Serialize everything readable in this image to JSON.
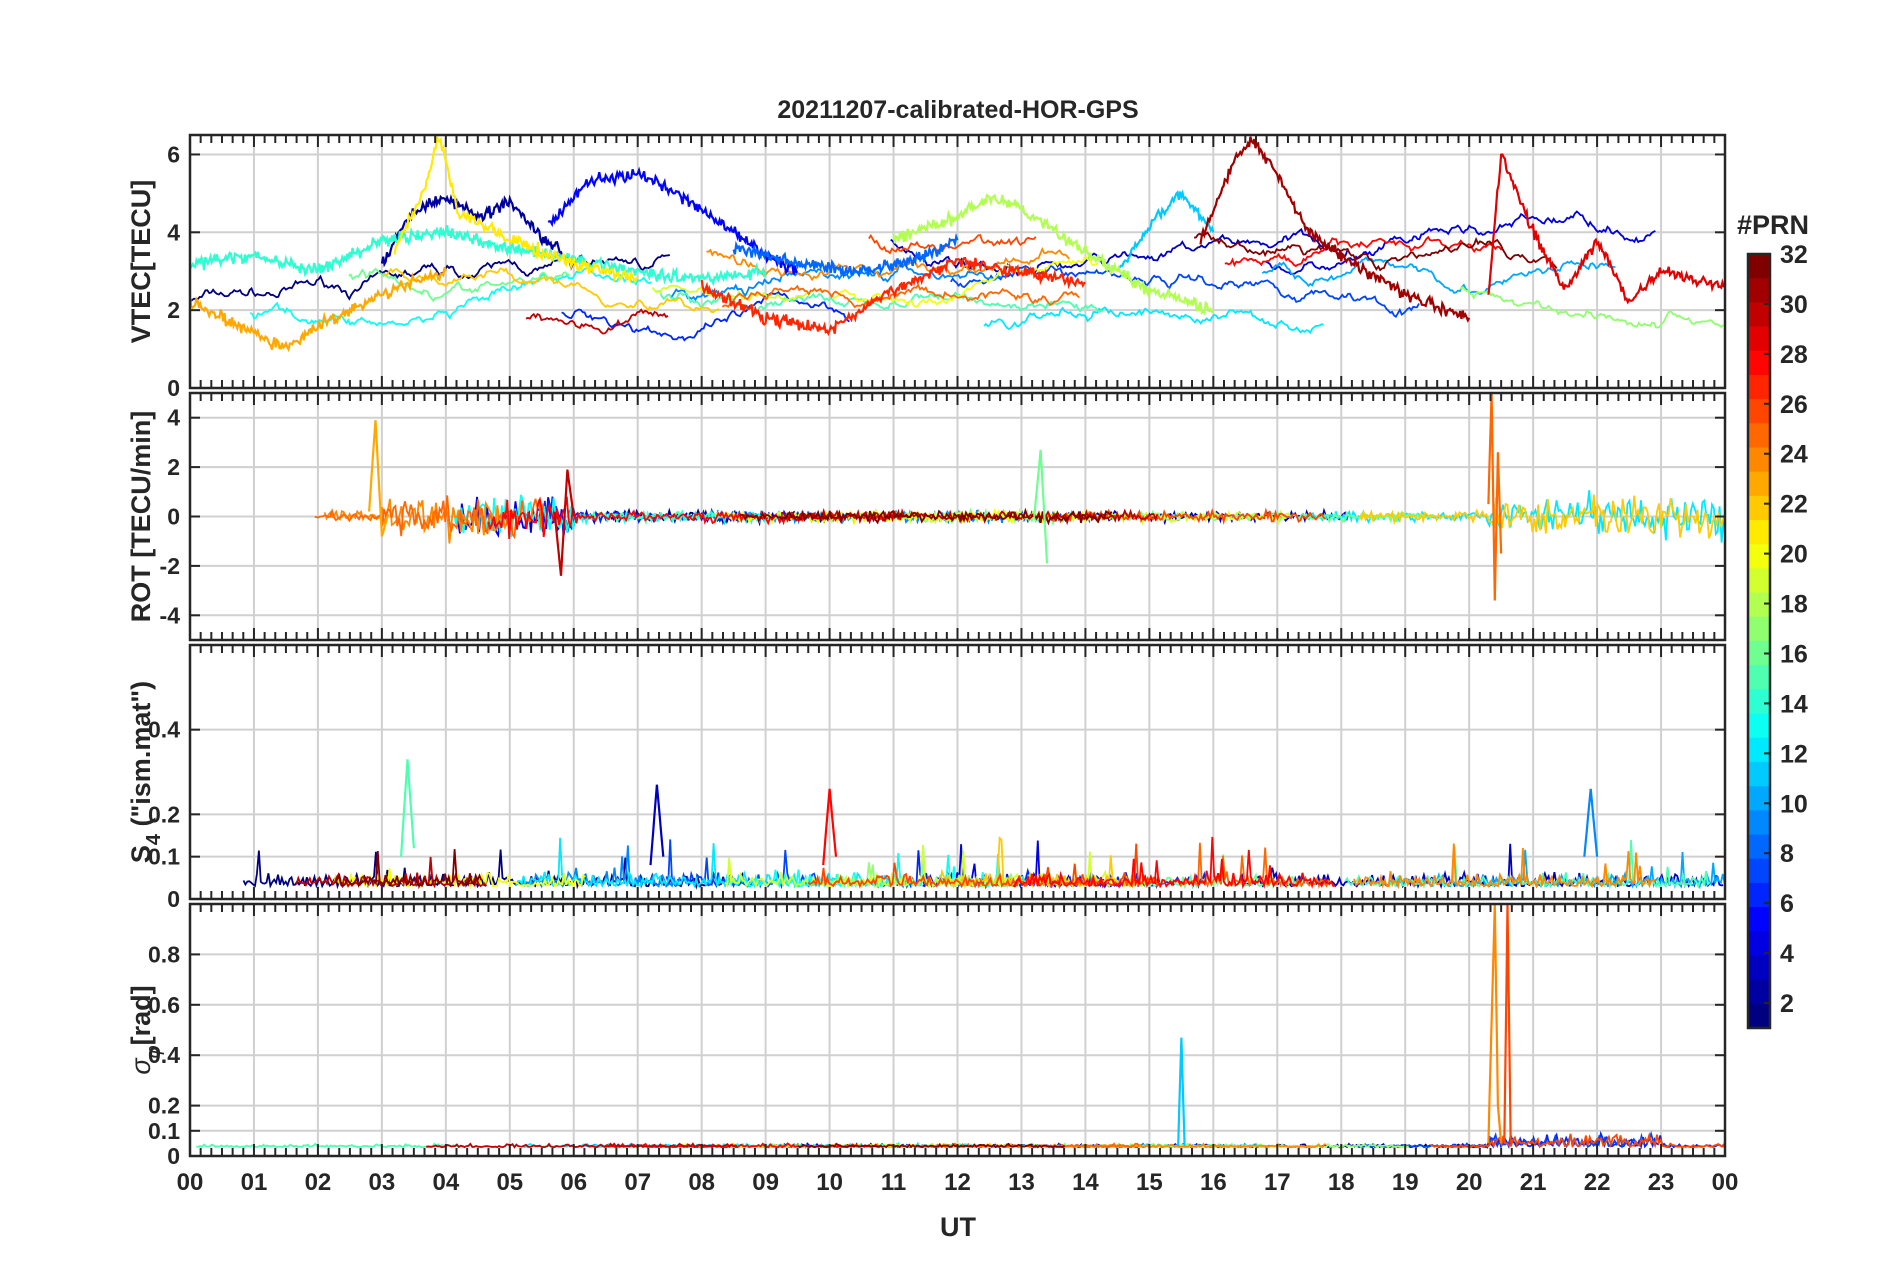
{
  "figure": {
    "title": "20211207-calibrated-HOR-GPS",
    "x_axis_label": "UT",
    "x_tick_labels": [
      "00",
      "01",
      "02",
      "03",
      "04",
      "05",
      "06",
      "07",
      "08",
      "09",
      "10",
      "11",
      "12",
      "13",
      "14",
      "15",
      "16",
      "17",
      "18",
      "19",
      "20",
      "21",
      "22",
      "23",
      "00"
    ]
  },
  "colorbar": {
    "title": "#PRN",
    "range": [
      1,
      32
    ],
    "tick_labels": [
      "2",
      "4",
      "6",
      "8",
      "10",
      "12",
      "14",
      "16",
      "18",
      "20",
      "22",
      "24",
      "26",
      "28",
      "30",
      "32"
    ],
    "colormap": "jet",
    "colors": [
      "#00008f",
      "#0000ff",
      "#0080ff",
      "#00ffff",
      "#80ff80",
      "#ffff00",
      "#ff8000",
      "#ff0000",
      "#800000"
    ]
  },
  "chart_data": [
    {
      "type": "line",
      "panel": "vtec",
      "ylabel": "VTEC[TECU]",
      "ylim": [
        0,
        6.5
      ],
      "yticks": [
        0,
        2,
        4,
        6
      ],
      "ytick_labels": [
        "0",
        "2",
        "4",
        "6"
      ],
      "xlim": [
        0,
        24
      ],
      "grid": true,
      "series_note": "one trace per GPS PRN (1–32), colored by PRN",
      "series": [
        {
          "prn": 2,
          "x": [
            3.0,
            3.5,
            4.0,
            4.5,
            5.0,
            5.5,
            6.0
          ],
          "y": [
            3.2,
            4.6,
            4.9,
            4.4,
            4.8,
            3.9,
            3.2
          ]
        },
        {
          "prn": 5,
          "x": [
            5.6,
            6.2,
            7.0,
            7.8,
            8.5,
            9.0,
            9.5
          ],
          "y": [
            4.2,
            5.3,
            5.5,
            4.8,
            4.0,
            3.4,
            3.0
          ]
        },
        {
          "prn": 8,
          "x": [
            8.5,
            9.5,
            10.5,
            11.5,
            12.0
          ],
          "y": [
            3.6,
            3.2,
            3.0,
            3.4,
            3.8
          ]
        },
        {
          "prn": 11,
          "x": [
            14.5,
            15.0,
            15.5,
            16.0
          ],
          "y": [
            3.0,
            4.2,
            5.0,
            4.0
          ]
        },
        {
          "prn": 14,
          "x": [
            0.0,
            1.0,
            2.0,
            3.0,
            4.0,
            5.0,
            6.0,
            7.0,
            8.0,
            9.0
          ],
          "y": [
            3.2,
            3.4,
            3.0,
            3.8,
            4.0,
            3.6,
            3.3,
            3.0,
            2.8,
            3.0
          ]
        },
        {
          "prn": 18,
          "x": [
            11.0,
            12.0,
            12.5,
            13.0,
            14.0,
            15.0,
            16.0
          ],
          "y": [
            3.8,
            4.4,
            4.9,
            4.6,
            3.5,
            2.5,
            2.0
          ]
        },
        {
          "prn": 21,
          "x": [
            3.2,
            3.6,
            3.9,
            4.2,
            5.0,
            6.0,
            7.0
          ],
          "y": [
            3.6,
            4.8,
            6.5,
            4.5,
            3.8,
            3.2,
            2.8
          ]
        },
        {
          "prn": 23,
          "x": [
            0.0,
            0.5,
            1.0,
            1.5,
            2.0,
            3.0,
            4.0
          ],
          "y": [
            2.2,
            1.8,
            1.4,
            1.0,
            1.6,
            2.4,
            3.0
          ]
        },
        {
          "prn": 27,
          "x": [
            8.0,
            9.0,
            10.0,
            11.0,
            12.0,
            13.0,
            14.0
          ],
          "y": [
            2.6,
            1.8,
            1.5,
            2.5,
            3.3,
            3.0,
            2.7
          ]
        },
        {
          "prn": 29,
          "x": [
            20.3,
            20.5,
            21.0,
            21.5,
            22.0,
            22.5,
            23.0,
            24.0
          ],
          "y": [
            2.5,
            6.0,
            4.0,
            2.5,
            3.8,
            2.2,
            3.0,
            2.6
          ]
        },
        {
          "prn": 31,
          "x": [
            15.8,
            16.3,
            16.6,
            17.0,
            17.5,
            18.0,
            19.0,
            20.0
          ],
          "y": [
            3.8,
            5.8,
            6.4,
            5.5,
            4.0,
            3.4,
            2.4,
            1.8
          ]
        }
      ]
    },
    {
      "type": "line",
      "panel": "rot",
      "ylabel": "ROT [TECU/min]",
      "ylim": [
        -5,
        5
      ],
      "yticks": [
        -4,
        -2,
        0,
        2,
        4
      ],
      "ytick_labels": [
        "-4",
        "-2",
        "0",
        "2",
        "4"
      ],
      "xlim": [
        0,
        24
      ],
      "grid": true,
      "series_note": "ROT per PRN scattered around 0; disturbed bursts near 03–06 UT and 20.3–24 UT",
      "series": [
        {
          "prn": 23,
          "x": [
            2.8,
            2.9,
            3.0,
            3.1
          ],
          "y": [
            0.2,
            3.9,
            -0.8,
            0.1
          ]
        },
        {
          "prn": 30,
          "x": [
            5.7,
            5.8,
            5.9,
            6.0
          ],
          "y": [
            0.2,
            -2.4,
            1.9,
            0.0
          ]
        },
        {
          "prn": 25,
          "x": [
            20.3,
            20.35,
            20.4,
            20.45,
            20.5
          ],
          "y": [
            0.5,
            5.0,
            -3.4,
            2.6,
            -1.5
          ]
        },
        {
          "prn": 16,
          "x": [
            13.2,
            13.3,
            13.4
          ],
          "y": [
            0.0,
            2.7,
            -1.9
          ]
        }
      ]
    },
    {
      "type": "line",
      "panel": "s4",
      "ylabel": "S4 (\"ism.mat\")",
      "ylabel_main": "S",
      "ylabel_sub": "4",
      "ylabel_rest": " (\"ism.mat\")",
      "ylim": [
        0,
        0.6
      ],
      "yticks": [
        0,
        0.1,
        0.2,
        0.4
      ],
      "ytick_labels": [
        "0",
        "0.1",
        "0.2",
        "0.4"
      ],
      "xlim": [
        0,
        24
      ],
      "grid": true,
      "series_note": "S4 index per PRN, mostly below 0.1 with peaks ~0.2–0.33",
      "series": [
        {
          "prn": 15,
          "x": [
            3.3,
            3.4,
            3.5
          ],
          "y": [
            0.1,
            0.33,
            0.12
          ]
        },
        {
          "prn": 3,
          "x": [
            7.2,
            7.3,
            7.4
          ],
          "y": [
            0.08,
            0.27,
            0.1
          ]
        },
        {
          "prn": 28,
          "x": [
            9.9,
            10.0,
            10.1
          ],
          "y": [
            0.08,
            0.26,
            0.1
          ]
        },
        {
          "prn": 9,
          "x": [
            21.8,
            21.9,
            22.0
          ],
          "y": [
            0.1,
            0.26,
            0.1
          ]
        }
      ]
    },
    {
      "type": "line",
      "panel": "sigma_phi",
      "ylabel": "σφ[rad]",
      "ylabel_main": "σ",
      "ylabel_sub": "φ",
      "ylabel_rest": "[rad]",
      "ylim": [
        0,
        1.0
      ],
      "yticks": [
        0,
        0.1,
        0.2,
        0.4,
        0.6,
        0.8
      ],
      "ytick_labels": [
        "0",
        "0.1",
        "0.2",
        "0.4",
        "0.6",
        "0.8"
      ],
      "xlim": [
        0,
        24
      ],
      "grid": true,
      "series_note": "phase scintillation per PRN, baseline ~0.04, spikes near 15.5 and 20.3–20.6 UT",
      "series": [
        {
          "prn": 11,
          "x": [
            15.45,
            15.5,
            15.55
          ],
          "y": [
            0.04,
            0.47,
            0.04
          ]
        },
        {
          "prn": 24,
          "x": [
            20.3,
            20.4,
            20.45,
            20.5
          ],
          "y": [
            0.05,
            1.0,
            0.2,
            0.05
          ]
        },
        {
          "prn": 26,
          "x": [
            20.55,
            20.6,
            20.65
          ],
          "y": [
            0.05,
            1.0,
            0.05
          ]
        }
      ]
    }
  ]
}
